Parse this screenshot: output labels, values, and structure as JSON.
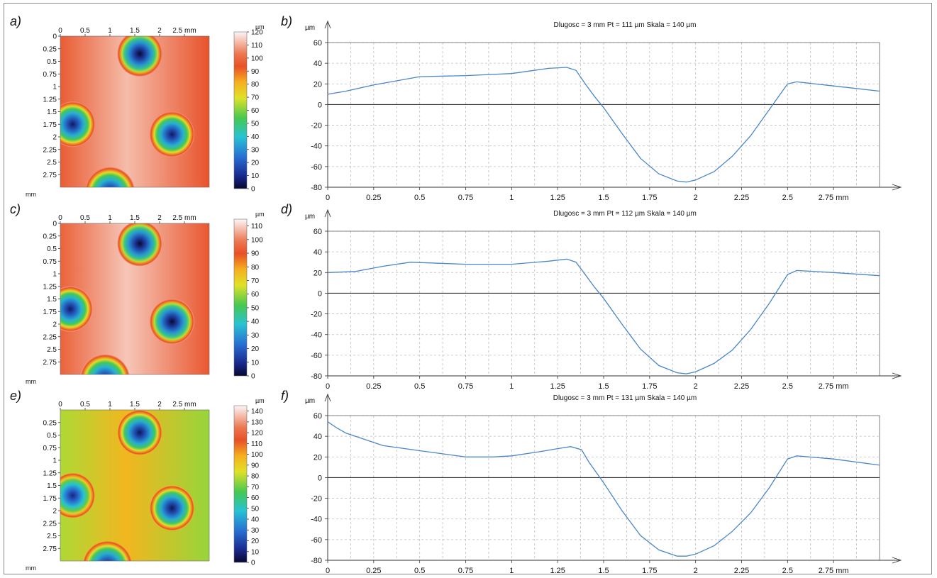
{
  "panel_labels": [
    "a)",
    "b)",
    "c)",
    "d)",
    "e)",
    "f)"
  ],
  "colors": {
    "profile_line": "#4a86c8",
    "grid": "#bdbdbd",
    "axis": "#222222"
  },
  "chart_data": [
    {
      "type": "heatmap",
      "panel": "a)",
      "x_ticks": [
        "0",
        "0.5",
        "1",
        "1.5",
        "2",
        "2.5 mm"
      ],
      "y_ticks": [
        "0",
        "0.25",
        "0.5",
        "0.75",
        "1",
        "1.25",
        "1.5",
        "1.75",
        "2",
        "2.25",
        "2.5",
        "2.75"
      ],
      "y_unit": "mm",
      "colorbar_unit": "µm",
      "colorbar_ticks": [
        "120",
        "110",
        "100",
        "90",
        "80",
        "70",
        "60",
        "50",
        "40",
        "30",
        "20",
        "10",
        "0"
      ],
      "colorbar_range": [
        0,
        120
      ],
      "colormap": "rainbow-white",
      "background_level": 105,
      "pits": [
        {
          "x": 1.6,
          "y": 0.35,
          "r": 0.45,
          "depth": 0
        },
        {
          "x": 0.25,
          "y": 1.75,
          "r": 0.45,
          "depth": 5
        },
        {
          "x": 2.25,
          "y": 1.95,
          "r": 0.45,
          "depth": 5
        },
        {
          "x": 1.0,
          "y": 3.1,
          "r": 0.5,
          "depth": 5
        }
      ]
    },
    {
      "type": "line",
      "panel": "b)",
      "title": "Dlugosc = 3 mm  Pt = 111 µm  Skala = 140 µm",
      "ylabel": "µm",
      "xlabel": "mm",
      "xlim": [
        0,
        3.0
      ],
      "ylim": [
        -80,
        60
      ],
      "x_ticks": [
        "0",
        "0.25",
        "0.5",
        "0.75",
        "1",
        "1.25",
        "1.5",
        "1.75",
        "2",
        "2.25",
        "2.5",
        "2.75 mm"
      ],
      "y_ticks": [
        "60",
        "40",
        "20",
        "0",
        "-20",
        "-40",
        "-60",
        "-80"
      ],
      "series": [
        {
          "x": [
            0,
            0.1,
            0.25,
            0.5,
            0.75,
            1.0,
            1.2,
            1.3,
            1.35,
            1.4,
            1.45,
            1.5,
            1.6,
            1.7,
            1.8,
            1.9,
            1.95,
            2.0,
            2.1,
            2.2,
            2.3,
            2.4,
            2.5,
            2.55,
            2.75,
            3.0
          ],
          "values": [
            10,
            13,
            19,
            27,
            28,
            30,
            35,
            36,
            33,
            20,
            8,
            -3,
            -28,
            -52,
            -67,
            -74,
            -75,
            -73,
            -65,
            -50,
            -30,
            -5,
            20,
            22,
            18,
            13
          ]
        }
      ]
    },
    {
      "type": "heatmap",
      "panel": "c)",
      "x_ticks": [
        "0",
        "0.5",
        "1",
        "1.5",
        "2",
        "2.5 mm"
      ],
      "y_ticks": [
        "0",
        "0.25",
        "0.5",
        "0.75",
        "1",
        "1.25",
        "1.5",
        "1.75",
        "2",
        "2.25",
        "2.5",
        "2.75"
      ],
      "y_unit": "mm",
      "colorbar_unit": "µm",
      "colorbar_ticks": [
        "110",
        "100",
        "90",
        "80",
        "70",
        "60",
        "50",
        "40",
        "30",
        "20",
        "10",
        "0"
      ],
      "colorbar_range": [
        0,
        115
      ],
      "colormap": "rainbow-white",
      "background_level": 102,
      "pits": [
        {
          "x": 1.6,
          "y": 0.4,
          "r": 0.45,
          "depth": 0
        },
        {
          "x": 0.2,
          "y": 1.7,
          "r": 0.45,
          "depth": 5
        },
        {
          "x": 2.25,
          "y": 1.95,
          "r": 0.45,
          "depth": 0
        },
        {
          "x": 0.9,
          "y": 3.1,
          "r": 0.5,
          "depth": 5
        }
      ]
    },
    {
      "type": "line",
      "panel": "d)",
      "title": "Dlugosc = 3 mm  Pt = 112 µm  Skala = 140 µm",
      "ylabel": "µm",
      "xlabel": "mm",
      "xlim": [
        0,
        3.0
      ],
      "ylim": [
        -80,
        60
      ],
      "x_ticks": [
        "0",
        "0.25",
        "0.5",
        "0.75",
        "1",
        "1.25",
        "1.5",
        "1.75",
        "2",
        "2.25",
        "2.5",
        "2.75 mm"
      ],
      "y_ticks": [
        "60",
        "40",
        "20",
        "0",
        "-20",
        "-40",
        "-60",
        "-80"
      ],
      "series": [
        {
          "x": [
            0,
            0.15,
            0.3,
            0.45,
            0.6,
            0.75,
            1.0,
            1.2,
            1.3,
            1.35,
            1.4,
            1.45,
            1.5,
            1.6,
            1.7,
            1.8,
            1.9,
            1.95,
            2.0,
            2.1,
            2.2,
            2.3,
            2.4,
            2.5,
            2.55,
            2.75,
            3.0
          ],
          "values": [
            20,
            21,
            26,
            30,
            29,
            28,
            28,
            31,
            33,
            30,
            18,
            6,
            -5,
            -30,
            -54,
            -70,
            -77,
            -78,
            -76,
            -68,
            -55,
            -35,
            -10,
            18,
            22,
            20,
            17
          ]
        }
      ]
    },
    {
      "type": "heatmap",
      "panel": "e)",
      "x_ticks": [
        "0",
        "0.5",
        "1",
        "1.5",
        "2",
        "2.5 mm"
      ],
      "y_ticks": [
        "0.25",
        "0.5",
        "0.75",
        "1",
        "1.25",
        "1.5",
        "1.75",
        "2",
        "2.25",
        "2.5",
        "2.75"
      ],
      "y_unit": "mm",
      "colorbar_unit": "µm",
      "colorbar_ticks": [
        "140",
        "130",
        "120",
        "110",
        "100",
        "90",
        "80",
        "70",
        "60",
        "50",
        "40",
        "30",
        "20",
        "10",
        "0"
      ],
      "colorbar_range": [
        0,
        145
      ],
      "colormap": "rainbow-white",
      "background_level": 88,
      "pits": [
        {
          "x": 1.6,
          "y": 0.45,
          "r": 0.45,
          "depth": 5
        },
        {
          "x": 0.25,
          "y": 1.7,
          "r": 0.45,
          "depth": 10
        },
        {
          "x": 2.25,
          "y": 1.95,
          "r": 0.45,
          "depth": 5
        },
        {
          "x": 0.95,
          "y": 3.1,
          "r": 0.5,
          "depth": 5
        }
      ]
    },
    {
      "type": "line",
      "panel": "f)",
      "title": "Dlugosc = 3 mm  Pt = 131 µm  Skala = 140 µm",
      "ylabel": "µm",
      "xlabel": "mm",
      "xlim": [
        0,
        3.0
      ],
      "ylim": [
        -80,
        60
      ],
      "x_ticks": [
        "0",
        "0.25",
        "0.5",
        "0.75",
        "1",
        "1.25",
        "1.5",
        "1.75",
        "2",
        "2.25",
        "2.5",
        "2.75 mm"
      ],
      "y_ticks": [
        "60",
        "40",
        "20",
        "0",
        "-20",
        "-40",
        "-60",
        "-80"
      ],
      "series": [
        {
          "x": [
            0,
            0.05,
            0.1,
            0.2,
            0.3,
            0.5,
            0.75,
            0.9,
            1.0,
            1.15,
            1.25,
            1.32,
            1.38,
            1.42,
            1.5,
            1.6,
            1.7,
            1.8,
            1.9,
            1.95,
            2.0,
            2.1,
            2.2,
            2.3,
            2.4,
            2.5,
            2.55,
            2.75,
            3.0
          ],
          "values": [
            54,
            48,
            43,
            37,
            31,
            26,
            20,
            20,
            21,
            25,
            28,
            30,
            27,
            15,
            -5,
            -32,
            -56,
            -70,
            -76,
            -76,
            -74,
            -66,
            -52,
            -34,
            -10,
            18,
            21,
            18,
            12
          ]
        }
      ]
    }
  ]
}
